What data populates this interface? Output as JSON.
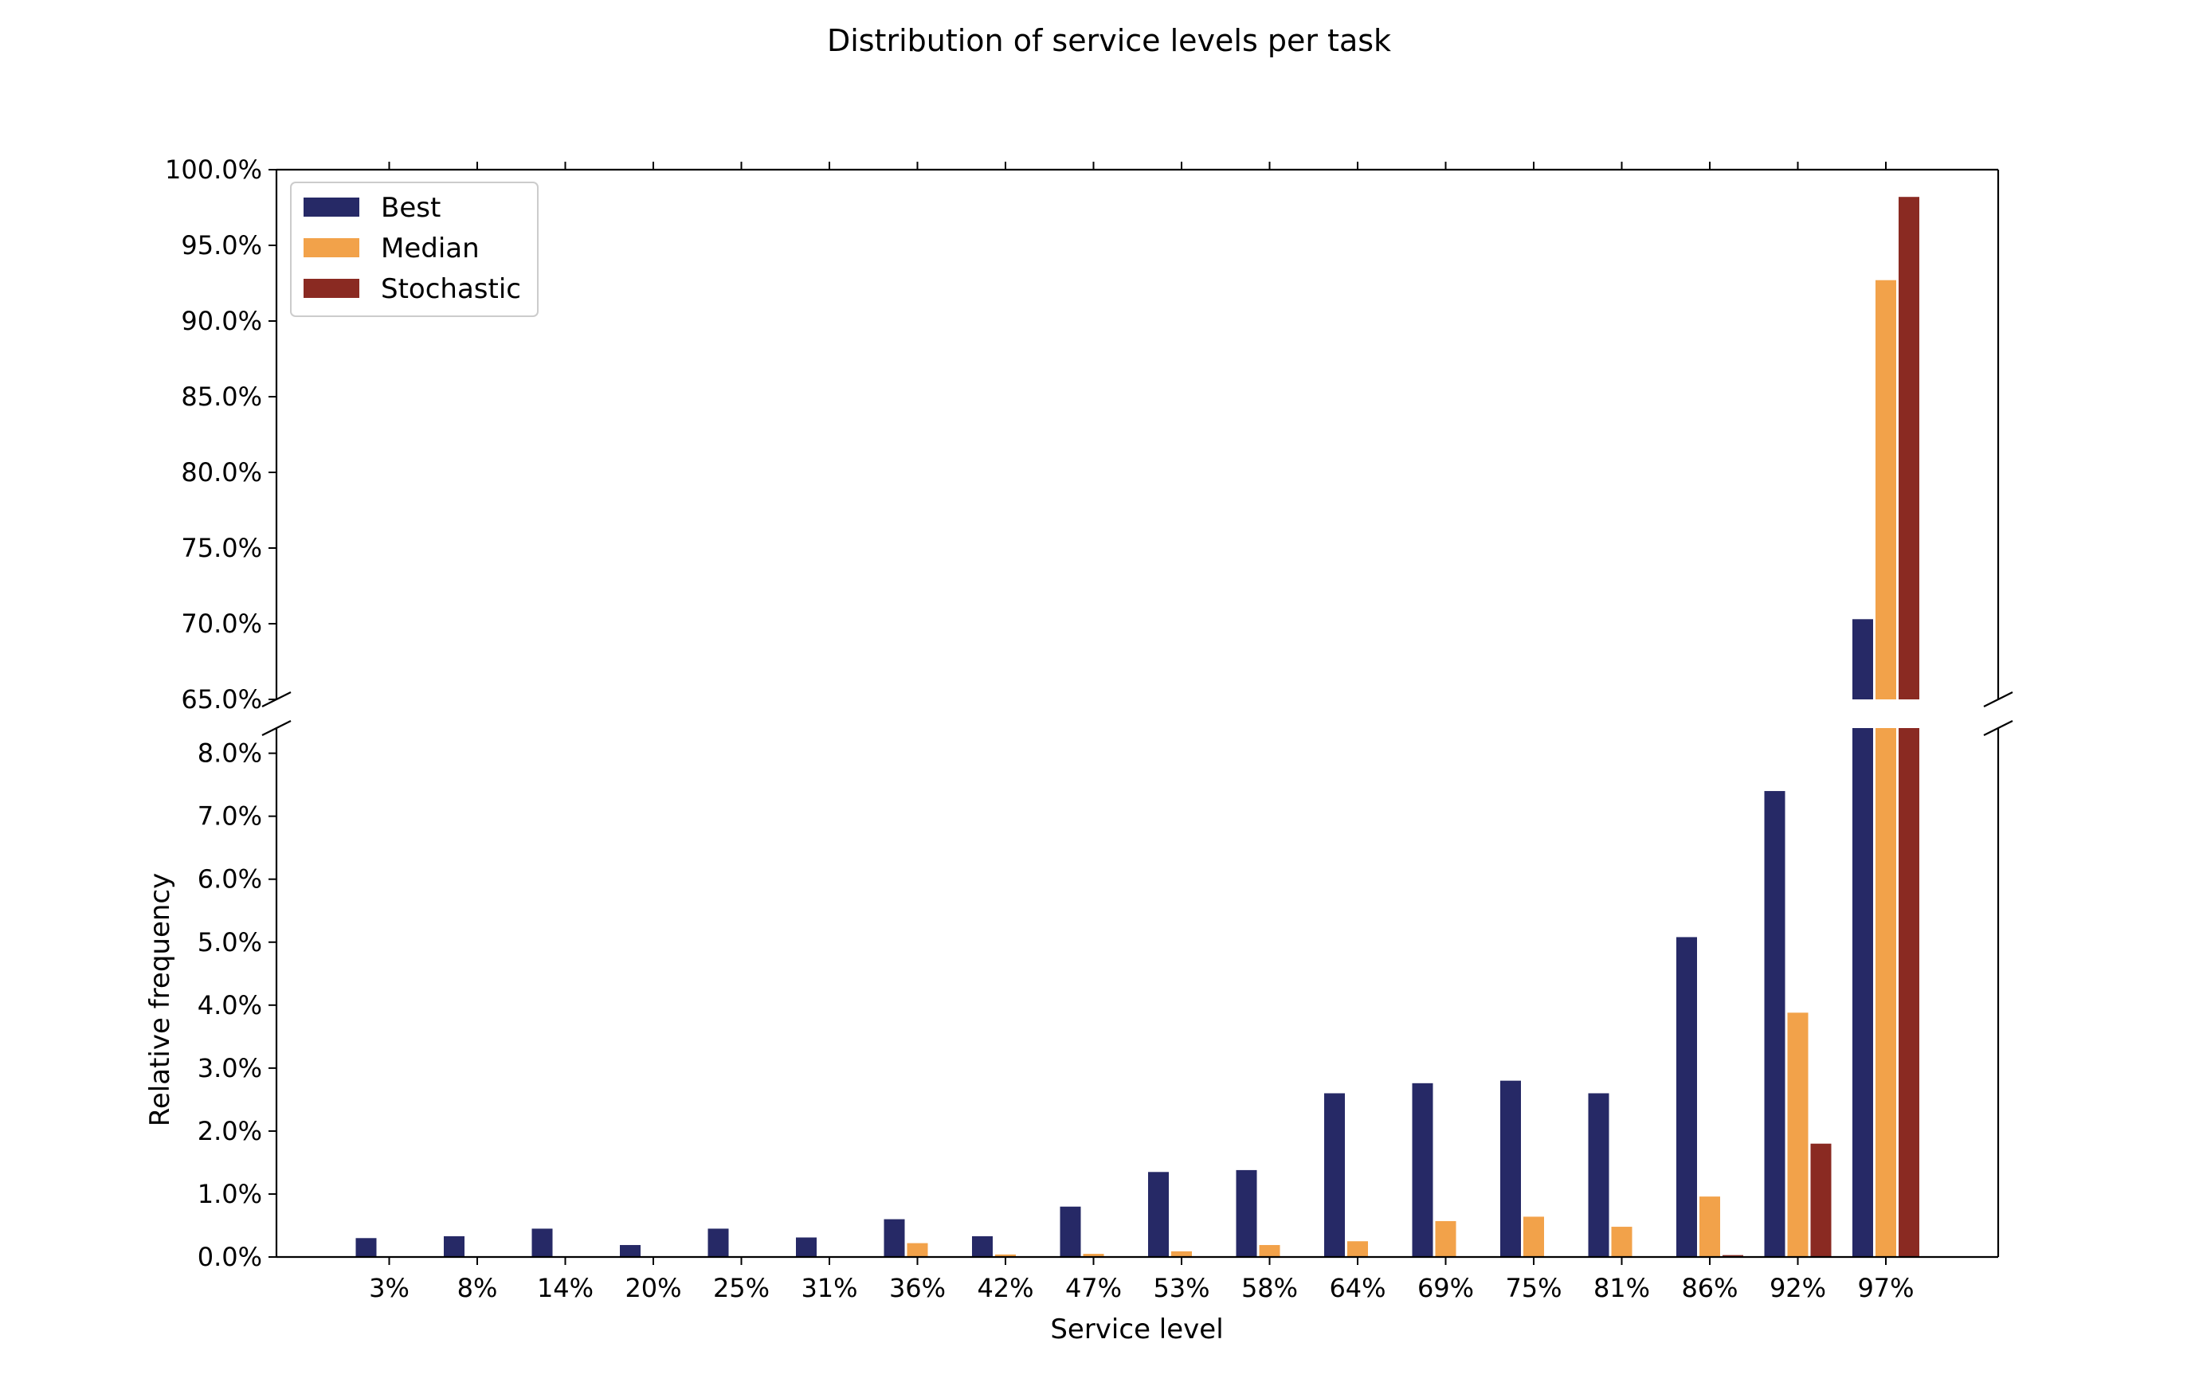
{
  "chart_data": {
    "type": "bar",
    "title": "Distribution of service levels per task",
    "xlabel": "Service level",
    "ylabel": "Relative frequency",
    "categories": [
      "3%",
      "8%",
      "14%",
      "20%",
      "25%",
      "31%",
      "36%",
      "42%",
      "47%",
      "53%",
      "58%",
      "64%",
      "69%",
      "75%",
      "81%",
      "86%",
      "92%",
      "97%"
    ],
    "series": [
      {
        "name": "Best",
        "color": "#262966",
        "values": [
          0.3,
          0.33,
          0.45,
          0.19,
          0.45,
          0.31,
          0.6,
          0.33,
          0.8,
          1.35,
          1.38,
          2.6,
          2.76,
          2.8,
          2.6,
          5.08,
          7.4,
          70.3
        ]
      },
      {
        "name": "Median",
        "color": "#f2a24a",
        "values": [
          0.0,
          0.0,
          0.0,
          0.0,
          0.0,
          0.01,
          0.22,
          0.04,
          0.05,
          0.09,
          0.19,
          0.25,
          0.57,
          0.64,
          0.48,
          0.96,
          3.88,
          92.7
        ]
      },
      {
        "name": "Stochastic",
        "color": "#8a2a22",
        "values": [
          0.0,
          0.0,
          0.0,
          0.0,
          0.0,
          0.0,
          0.0,
          0.0,
          0.0,
          0.0,
          0.0,
          0.0,
          0.0,
          0.0,
          0.0,
          0.03,
          1.8,
          98.2
        ]
      }
    ],
    "y_unit": "%",
    "broken_axis": true,
    "ylim_lower": [
      0,
      8.4
    ],
    "ylim_upper": [
      65,
      100
    ],
    "yticks_lower": [
      "0.0%",
      "1.0%",
      "2.0%",
      "3.0%",
      "4.0%",
      "5.0%",
      "6.0%",
      "7.0%",
      "8.0%"
    ],
    "yticks_upper": [
      "65.0%",
      "70.0%",
      "75.0%",
      "80.0%",
      "85.0%",
      "90.0%",
      "95.0%",
      "100.0%"
    ],
    "legend_position": "top-left",
    "grid": false
  }
}
